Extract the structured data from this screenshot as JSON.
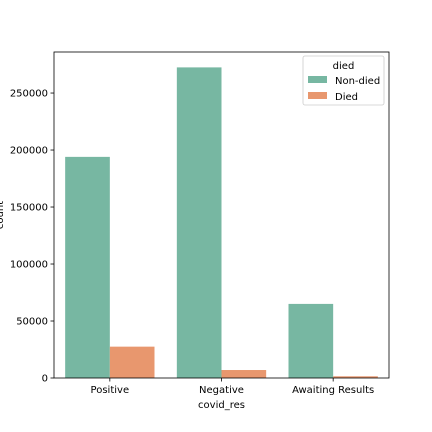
{
  "chart_data": {
    "type": "bar",
    "categories": [
      "Positive",
      "Negative",
      "Awaiting Results"
    ],
    "series": [
      {
        "name": "Non-died",
        "values": [
          194000,
          272500,
          65000
        ],
        "color": "#77b7a2"
      },
      {
        "name": "Died",
        "values": [
          27500,
          7000,
          1500
        ],
        "color": "#e8976e"
      }
    ],
    "xlabel": "covid_res",
    "ylabel": "count",
    "ylim": [
      0,
      286000
    ],
    "yticks": [
      0,
      50000,
      100000,
      150000,
      200000,
      250000
    ],
    "grid": false,
    "legend": {
      "title": "died",
      "placement": "top-right"
    }
  }
}
